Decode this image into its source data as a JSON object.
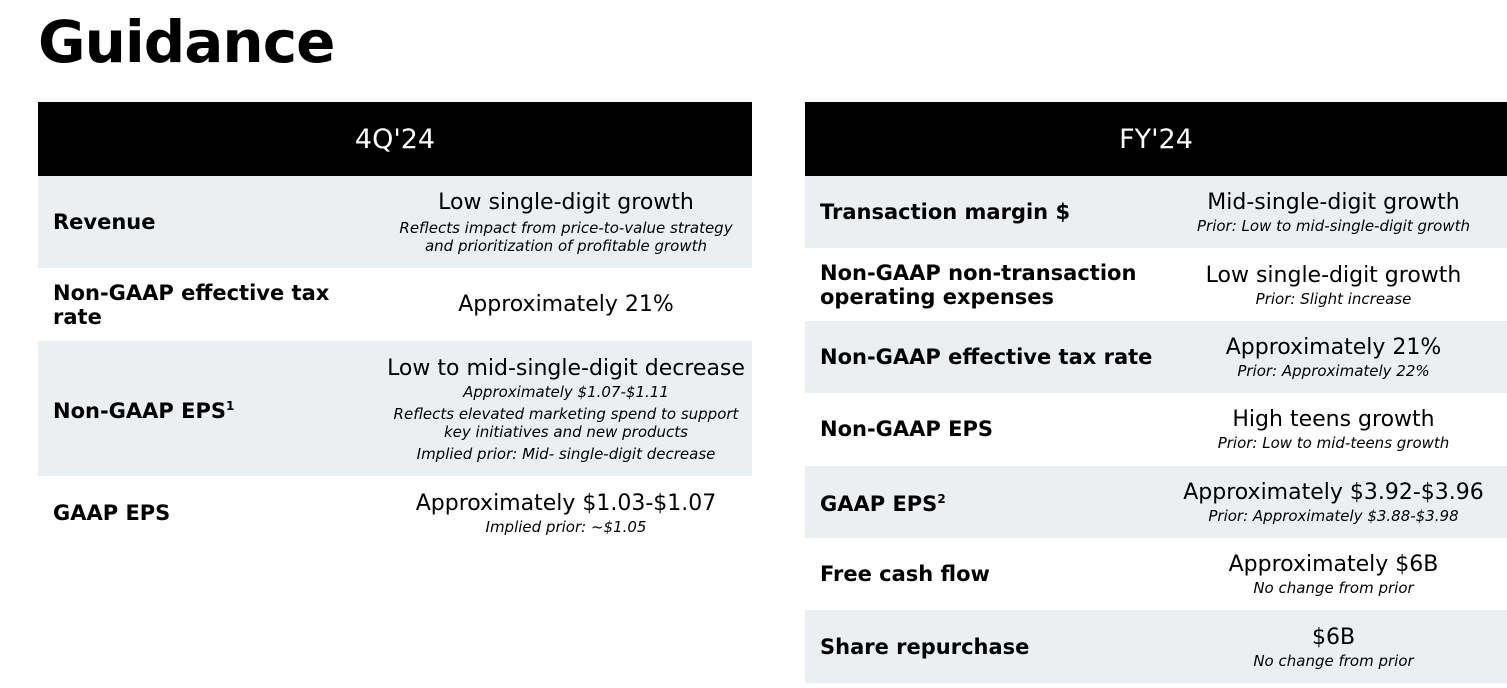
{
  "title": "Guidance",
  "quarter": {
    "header": "4Q'24",
    "rows": [
      {
        "label": "Revenue",
        "value": "Low single-digit growth",
        "notes": [
          "Reflects impact from price-to-value strategy",
          "and prioritization of profitable growth"
        ]
      },
      {
        "label": "Non-GAAP effective tax rate",
        "value": "Approximately 21%"
      },
      {
        "label": "Non-GAAP EPS",
        "sup": "1",
        "value": "Low to mid-single-digit decrease",
        "notes": [
          "Approximately $1.07-$1.11",
          "Reflects elevated marketing spend to support",
          "key initiatives and new products",
          "Implied prior: Mid- single-digit decrease"
        ]
      },
      {
        "label": "GAAP EPS",
        "value": "Approximately $1.03-$1.07",
        "notes": [
          "Implied prior: ~$1.05"
        ]
      }
    ]
  },
  "year": {
    "header": "FY'24",
    "rows": [
      {
        "label": "Transaction margin $",
        "value": "Mid-single-digit growth",
        "note": "Prior: Low to mid-single-digit growth"
      },
      {
        "label": "Non-GAAP non-transaction operating expenses",
        "value": "Low single-digit growth",
        "note": "Prior: Slight increase"
      },
      {
        "label": "Non-GAAP effective tax rate",
        "value": "Approximately 21%",
        "note": "Prior: Approximately 22%"
      },
      {
        "label": "Non-GAAP EPS",
        "value": "High teens growth",
        "note": "Prior: Low to mid-teens growth"
      },
      {
        "label": "GAAP EPS",
        "sup": "2",
        "value": "Approximately $3.92-$3.96",
        "note": "Prior: Approximately $3.88-$3.98"
      },
      {
        "label": "Free cash flow",
        "value": "Approximately $6B",
        "note": "No change from prior"
      },
      {
        "label": "Share repurchase",
        "value": "$6B",
        "note": "No change from prior"
      }
    ]
  },
  "colors": {
    "header_bg": "#000000",
    "stripe_bg": "#eceff2"
  }
}
